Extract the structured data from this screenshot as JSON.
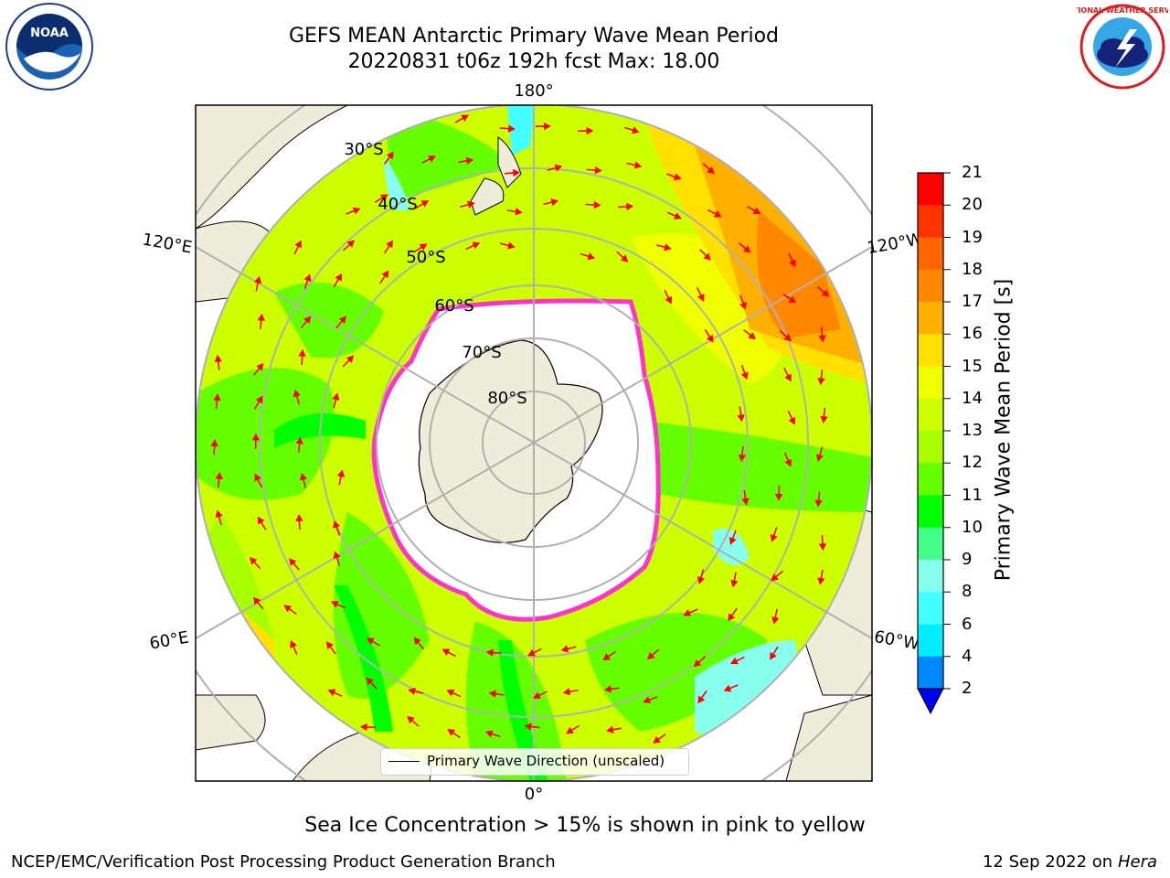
{
  "header": {
    "title_line1": "GEFS MEAN Antarctic Primary Wave Mean Period",
    "title_line2": "20220831 t06z 192h fcst   Max: 18.00"
  },
  "logos": {
    "left": "noaa-logo",
    "right": "national-weather-service-logo",
    "left_text": "NOAA",
    "right_text": "NATIONAL WEATHER SERVICE"
  },
  "map": {
    "projection": "south-polar-stereographic",
    "longitude_labels": [
      "180°",
      "120°E",
      "120°W",
      "60°E",
      "60°W",
      "0°"
    ],
    "latitude_labels": [
      "30°S",
      "40°S",
      "50°S",
      "60°S",
      "70°S",
      "80°S"
    ],
    "legend_label": "Primary Wave Direction (unscaled)",
    "colors": {
      "land": "#efedda",
      "sea_ice": "#ffffff",
      "ice_edge": "#ff33cc",
      "arrow": "#ff0000",
      "graticule": "#b0b0b0"
    }
  },
  "colorbar": {
    "label": "Primary Wave Mean Period [s]",
    "ticks": [
      "21",
      "20",
      "19",
      "18",
      "17",
      "16",
      "15",
      "14",
      "13",
      "12",
      "11",
      "10",
      "9",
      "8",
      "6",
      "4",
      "2"
    ],
    "colors": [
      "#ff0000",
      "#ff3300",
      "#ff6600",
      "#ff8800",
      "#ffb000",
      "#ffe000",
      "#f0ff00",
      "#ccff00",
      "#a8ff00",
      "#66ff00",
      "#00ff00",
      "#44ff88",
      "#88ffee",
      "#44ffff",
      "#00eeff",
      "#0088ff",
      "#0044ff"
    ]
  },
  "footer": {
    "note": "Sea Ice Concentration > 15% is shown in pink to yellow",
    "credit": "NCEP/EMC/Verification Post Processing Product Generation Branch",
    "date": "12 Sep 2022 on",
    "system": "Hera"
  }
}
